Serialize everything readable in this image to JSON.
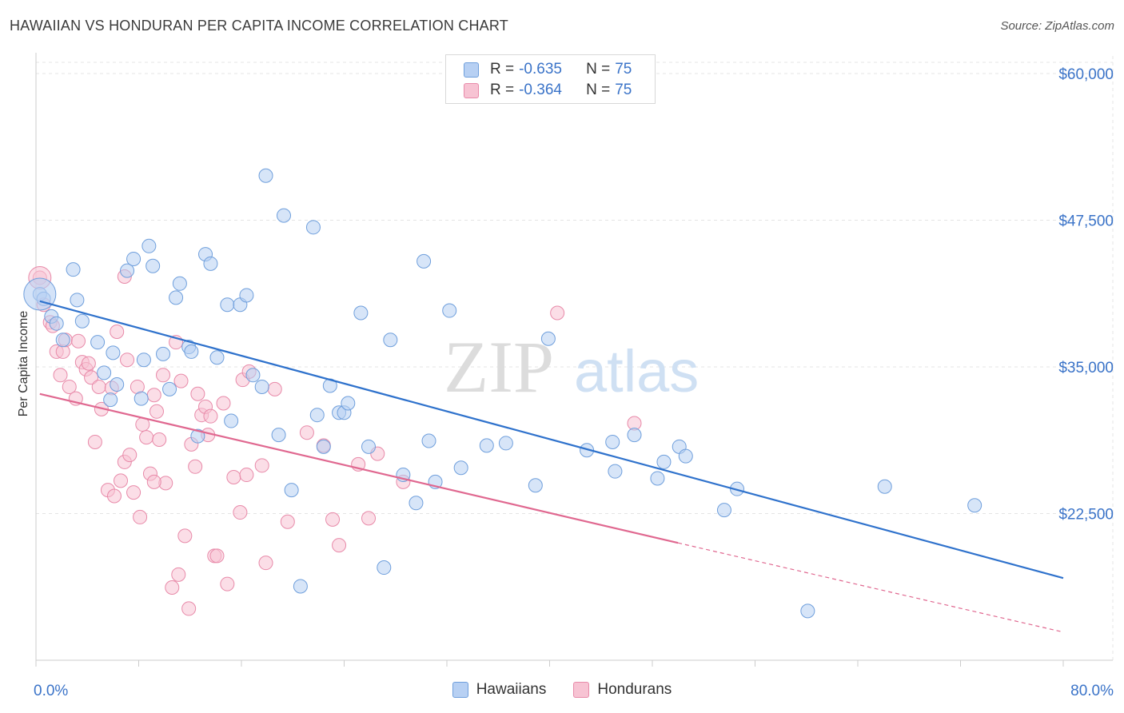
{
  "title": "HAWAIIAN VS HONDURAN PER CAPITA INCOME CORRELATION CHART",
  "source": "Source: ZipAtlas.com",
  "watermark": {
    "zip": "ZIP",
    "atlas": "atlas"
  },
  "colors": {
    "hawaiian_fill": "#b7d0f3",
    "hawaiian_stroke": "#6f9fdc",
    "hawaiian_line": "#2f72cc",
    "honduran_fill": "#f7c3d3",
    "honduran_stroke": "#e88aa9",
    "honduran_line": "#e06890",
    "axis_label": "#3a73c8",
    "grid": "#e4e4e4"
  },
  "legend": {
    "rows": [
      {
        "r_label": "R =",
        "r_value": "-0.635",
        "n_label": "N =",
        "n_value": "75"
      },
      {
        "r_label": "R =",
        "r_value": "-0.364",
        "n_label": "N =",
        "n_value": "75"
      }
    ],
    "series": [
      "Hawaiians",
      "Hondurans"
    ]
  },
  "chart_data": {
    "type": "scatter",
    "title": "HAWAIIAN VS HONDURAN PER CAPITA INCOME CORRELATION CHART",
    "xlabel": "",
    "ylabel": "Per Capita Income",
    "xlim": [
      0,
      80
    ],
    "ylim": [
      10000,
      61500
    ],
    "x_tick_labels": [
      "0.0%",
      "80.0%"
    ],
    "y_ticks": [
      22500,
      35000,
      47500,
      60000
    ],
    "y_tick_labels": [
      "$22,500",
      "$35,000",
      "$47,500",
      "$60,000"
    ],
    "grid": true,
    "legend_position": "top-center",
    "series": [
      {
        "name": "Hawaiians",
        "points": [
          [
            0.3,
            41200
          ],
          [
            0.6,
            40800
          ],
          [
            1.2,
            39300
          ],
          [
            1.6,
            38700
          ],
          [
            2.1,
            37300
          ],
          [
            2.9,
            43300
          ],
          [
            3.2,
            40700
          ],
          [
            3.6,
            38900
          ],
          [
            4.8,
            37100
          ],
          [
            5.3,
            34500
          ],
          [
            6.0,
            36200
          ],
          [
            6.3,
            33500
          ],
          [
            5.8,
            32200
          ],
          [
            7.1,
            43200
          ],
          [
            7.6,
            44200
          ],
          [
            8.2,
            32300
          ],
          [
            8.4,
            35600
          ],
          [
            8.8,
            45300
          ],
          [
            9.1,
            43600
          ],
          [
            9.9,
            36100
          ],
          [
            10.4,
            33100
          ],
          [
            10.9,
            40900
          ],
          [
            11.2,
            42100
          ],
          [
            11.9,
            36700
          ],
          [
            12.1,
            36300
          ],
          [
            12.6,
            29100
          ],
          [
            13.2,
            44600
          ],
          [
            13.6,
            43800
          ],
          [
            14.1,
            35800
          ],
          [
            14.9,
            40300
          ],
          [
            15.2,
            30400
          ],
          [
            15.9,
            40300
          ],
          [
            16.4,
            41100
          ],
          [
            16.9,
            34300
          ],
          [
            17.6,
            33300
          ],
          [
            17.9,
            51300
          ],
          [
            18.9,
            29200
          ],
          [
            19.3,
            47900
          ],
          [
            19.9,
            24500
          ],
          [
            20.6,
            16300
          ],
          [
            21.6,
            46900
          ],
          [
            21.9,
            30900
          ],
          [
            22.4,
            28200
          ],
          [
            22.9,
            33400
          ],
          [
            23.6,
            31100
          ],
          [
            24.0,
            31100
          ],
          [
            24.3,
            31900
          ],
          [
            25.3,
            39600
          ],
          [
            25.9,
            28200
          ],
          [
            27.1,
            17900
          ],
          [
            27.6,
            37300
          ],
          [
            28.6,
            25800
          ],
          [
            29.6,
            23400
          ],
          [
            30.2,
            44000
          ],
          [
            30.6,
            28700
          ],
          [
            31.1,
            25200
          ],
          [
            32.2,
            39800
          ],
          [
            33.1,
            26400
          ],
          [
            35.1,
            28300
          ],
          [
            36.6,
            28500
          ],
          [
            38.9,
            24900
          ],
          [
            39.9,
            37400
          ],
          [
            42.9,
            27900
          ],
          [
            44.9,
            28600
          ],
          [
            45.1,
            26100
          ],
          [
            46.6,
            29200
          ],
          [
            48.4,
            25500
          ],
          [
            48.9,
            26900
          ],
          [
            50.1,
            28200
          ],
          [
            50.6,
            27400
          ],
          [
            53.6,
            22800
          ],
          [
            54.6,
            24600
          ],
          [
            60.1,
            14200
          ],
          [
            66.1,
            24800
          ],
          [
            73.1,
            23200
          ]
        ],
        "trend": {
          "x": [
            0.3,
            80
          ],
          "y": [
            40600,
            17000
          ]
        }
      },
      {
        "name": "Hondurans",
        "points": [
          [
            0.3,
            42600
          ],
          [
            0.6,
            40300
          ],
          [
            1.1,
            38800
          ],
          [
            1.3,
            38500
          ],
          [
            1.6,
            36300
          ],
          [
            1.9,
            34300
          ],
          [
            2.1,
            36300
          ],
          [
            2.3,
            37300
          ],
          [
            2.6,
            33300
          ],
          [
            3.1,
            32300
          ],
          [
            3.3,
            37200
          ],
          [
            3.6,
            35400
          ],
          [
            3.9,
            34800
          ],
          [
            4.1,
            35300
          ],
          [
            4.3,
            34100
          ],
          [
            4.6,
            28600
          ],
          [
            4.9,
            33300
          ],
          [
            5.1,
            31400
          ],
          [
            5.6,
            24500
          ],
          [
            5.9,
            33200
          ],
          [
            6.1,
            24000
          ],
          [
            6.3,
            38000
          ],
          [
            6.6,
            25300
          ],
          [
            6.9,
            26900
          ],
          [
            7.1,
            35600
          ],
          [
            7.3,
            27500
          ],
          [
            7.6,
            24300
          ],
          [
            7.9,
            33300
          ],
          [
            8.1,
            22200
          ],
          [
            8.3,
            30100
          ],
          [
            8.6,
            29000
          ],
          [
            8.9,
            25900
          ],
          [
            9.2,
            32600
          ],
          [
            9.4,
            31200
          ],
          [
            9.6,
            28800
          ],
          [
            9.9,
            34300
          ],
          [
            10.1,
            25100
          ],
          [
            10.6,
            16200
          ],
          [
            10.9,
            37100
          ],
          [
            11.1,
            17300
          ],
          [
            11.6,
            20600
          ],
          [
            11.9,
            14400
          ],
          [
            12.1,
            28400
          ],
          [
            12.4,
            26500
          ],
          [
            12.6,
            32700
          ],
          [
            12.9,
            30900
          ],
          [
            13.2,
            31600
          ],
          [
            13.4,
            29200
          ],
          [
            13.6,
            30800
          ],
          [
            13.9,
            18900
          ],
          [
            14.1,
            18900
          ],
          [
            14.9,
            16500
          ],
          [
            15.4,
            25600
          ],
          [
            15.9,
            22600
          ],
          [
            16.1,
            33900
          ],
          [
            16.4,
            25800
          ],
          [
            16.6,
            34600
          ],
          [
            17.6,
            26600
          ],
          [
            17.9,
            18300
          ],
          [
            18.6,
            33100
          ],
          [
            19.6,
            21800
          ],
          [
            21.1,
            29400
          ],
          [
            22.4,
            28300
          ],
          [
            23.1,
            22000
          ],
          [
            23.6,
            19800
          ],
          [
            25.1,
            26700
          ],
          [
            25.9,
            22100
          ],
          [
            26.6,
            27600
          ],
          [
            28.6,
            25200
          ],
          [
            40.6,
            39600
          ],
          [
            46.6,
            30200
          ],
          [
            6.9,
            42700
          ],
          [
            11.3,
            33800
          ],
          [
            14.6,
            31900
          ],
          [
            9.2,
            25200
          ]
        ],
        "trend": {
          "x": [
            0.3,
            50
          ],
          "y": [
            32700,
            20000
          ]
        },
        "trend_dashed": {
          "x": [
            50,
            80
          ],
          "y": [
            20000,
            12400
          ]
        }
      }
    ]
  }
}
